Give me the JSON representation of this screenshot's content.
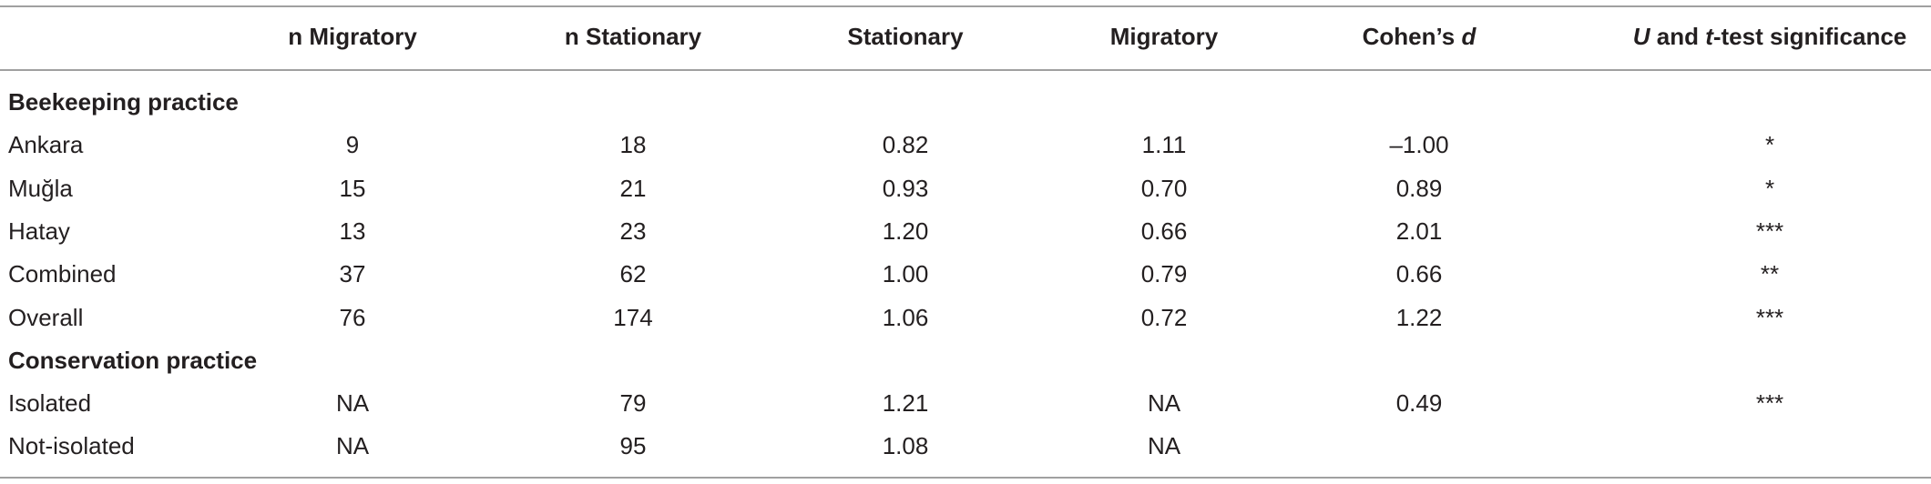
{
  "table": {
    "columns": [
      null,
      [
        {
          "text": "n Migratory"
        }
      ],
      [
        {
          "text": "n Stationary"
        }
      ],
      [
        {
          "text": "Stationary"
        }
      ],
      [
        {
          "text": "Migratory"
        }
      ],
      [
        {
          "text": "Cohen’s "
        },
        {
          "text": "d",
          "italic": true
        }
      ],
      [
        {
          "text": "U",
          "italic": true
        },
        {
          "text": " and "
        },
        {
          "text": "t",
          "italic": true
        },
        {
          "text": "-test significance"
        }
      ]
    ],
    "sections": [
      {
        "title": "Beekeeping practice",
        "rows": [
          [
            "Ankara",
            "9",
            "18",
            "0.82",
            "1.11",
            "–1.00",
            "*"
          ],
          [
            "Muğla",
            "15",
            "21",
            "0.93",
            "0.70",
            "0.89",
            "*"
          ],
          [
            "Hatay",
            "13",
            "23",
            "1.20",
            "0.66",
            "2.01",
            "***"
          ],
          [
            "Combined",
            "37",
            "62",
            "1.00",
            "0.79",
            "0.66",
            "**"
          ],
          [
            "Overall",
            "76",
            "174",
            "1.06",
            "0.72",
            "1.22",
            "***"
          ]
        ]
      },
      {
        "title": "Conservation practice",
        "rows": [
          [
            "Isolated",
            "NA",
            "79",
            "1.21",
            "NA",
            "0.49",
            "***"
          ],
          [
            "Not-isolated",
            "NA",
            "95",
            "1.08",
            "NA",
            null,
            null
          ]
        ]
      }
    ]
  }
}
